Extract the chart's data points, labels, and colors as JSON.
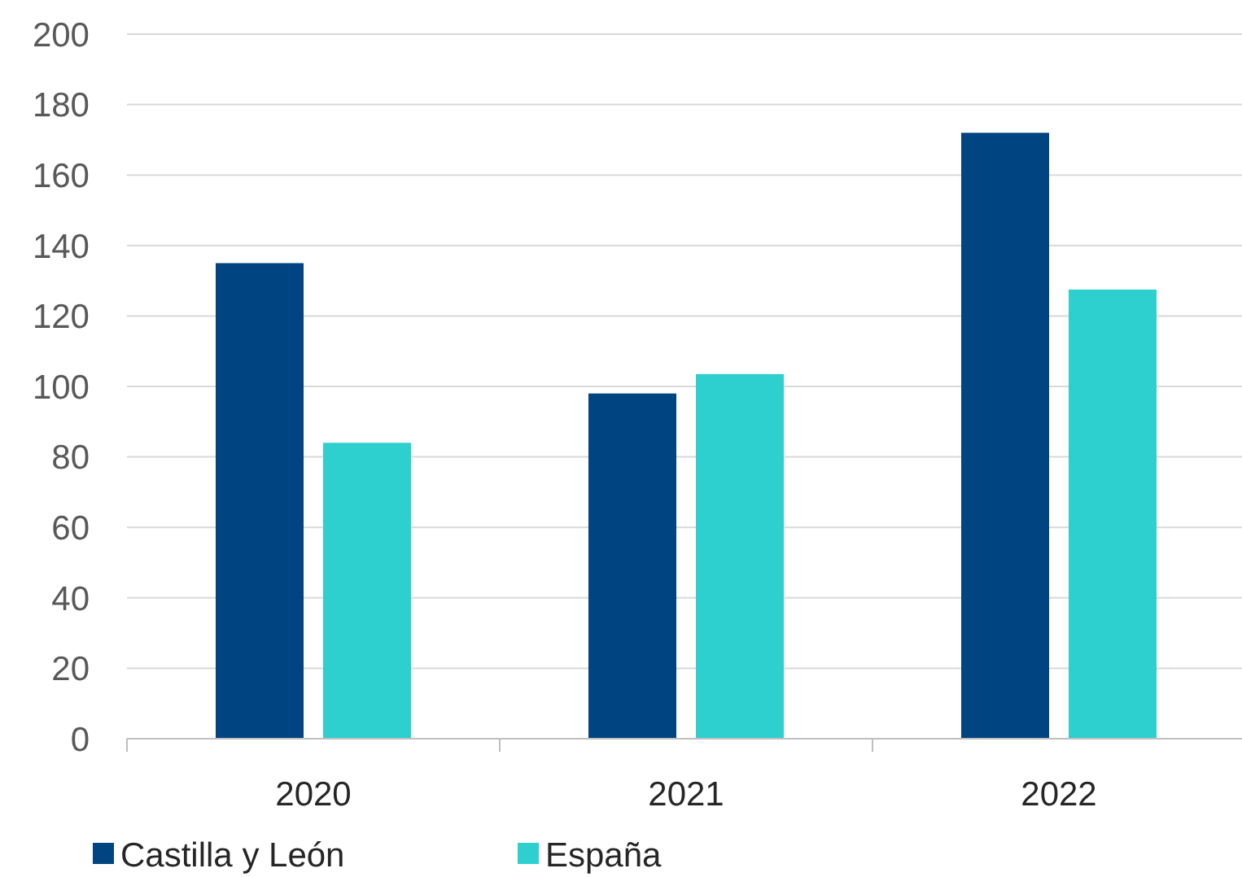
{
  "chart_data": {
    "type": "bar",
    "categories": [
      "2020",
      "2021",
      "2022"
    ],
    "series": [
      {
        "name": "Castilla y León",
        "color": "#004481",
        "values": [
          135,
          98,
          172
        ]
      },
      {
        "name": "España",
        "color": "#2ecfcf",
        "values": [
          84,
          103.5,
          127.5
        ]
      }
    ],
    "ylim": [
      0,
      200
    ],
    "yticks": [
      0,
      20,
      40,
      60,
      80,
      100,
      120,
      140,
      160,
      180,
      200
    ],
    "grid": "y",
    "legend": "bottom"
  }
}
